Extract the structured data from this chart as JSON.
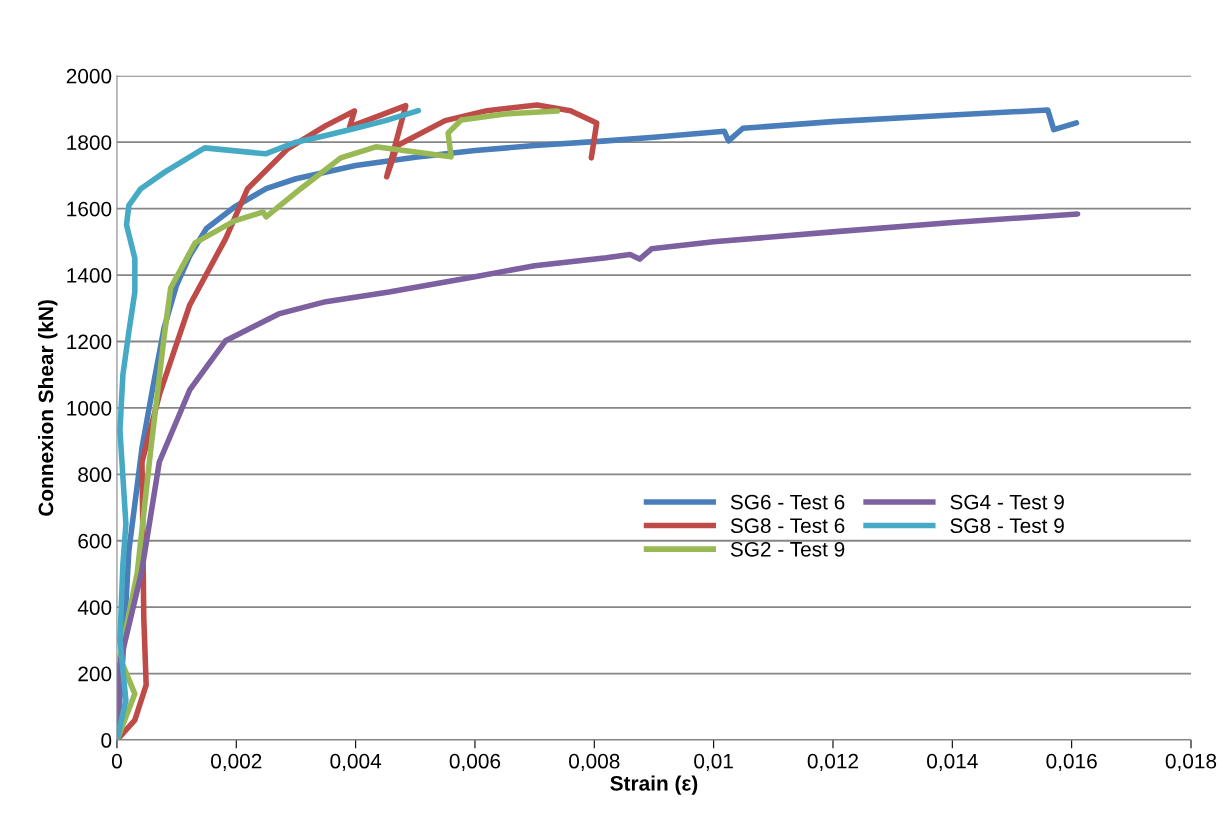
{
  "chart_data": {
    "type": "line",
    "xlabel": "Strain (ε)",
    "ylabel": "Connexion Shear (kN)",
    "xlim": [
      0,
      0.018
    ],
    "ylim": [
      0,
      2000
    ],
    "xticks": [
      0,
      {
        "value": 0.002,
        "label": "0,002"
      },
      {
        "value": 0.004,
        "label": "0,004"
      },
      {
        "value": 0.006,
        "label": "0,006"
      },
      {
        "value": 0.008,
        "label": "0,008"
      },
      {
        "value": 0.01,
        "label": "0,01"
      },
      {
        "value": 0.012,
        "label": "0,012"
      },
      {
        "value": 0.014,
        "label": "0,014"
      },
      {
        "value": 0.016,
        "label": "0,016"
      },
      {
        "value": 0.018,
        "label": "0,018"
      }
    ],
    "yticks": [
      0,
      200,
      400,
      600,
      800,
      1000,
      1200,
      1400,
      1600,
      1800,
      2000
    ],
    "grid": "y",
    "legend": "right",
    "marker": "none",
    "line_style": "solid",
    "series": [
      {
        "name": "SG6 - Test 6",
        "color": "#4a7ebb",
        "x": [
          0,
          0.0001,
          0.0002,
          0.00042,
          0.0006,
          0.00079,
          0.001,
          0.00122,
          0.0015,
          0.00197,
          0.0025,
          0.003,
          0.004,
          0.005,
          0.006,
          0.007,
          0.0082,
          0.009,
          0.01018,
          0.01025,
          0.01049,
          0.012,
          0.014,
          0.0156,
          0.0157,
          0.01608
        ],
        "values": [
          0,
          250,
          570,
          880,
          1060,
          1241,
          1370,
          1458,
          1540,
          1605,
          1660,
          1690,
          1730,
          1755,
          1775,
          1790,
          1804,
          1815,
          1833,
          1804,
          1842,
          1862,
          1882,
          1897,
          1838,
          1858
        ]
      },
      {
        "name": "SG8 - Test 6",
        "color": "#be4b48",
        "x": [
          0,
          0.0003,
          0.00049,
          0.00045,
          0.00042,
          0.00071,
          0.00122,
          0.00182,
          0.00219,
          0.00286,
          0.0035,
          0.00398,
          0.0039,
          0.0044,
          0.00484,
          0.00452,
          0.0047,
          0.0055,
          0.0062,
          0.00704,
          0.0076,
          0.00804,
          0.00795
        ],
        "values": [
          0,
          60,
          166,
          367,
          837,
          1039,
          1310,
          1509,
          1660,
          1780,
          1850,
          1894,
          1846,
          1880,
          1910,
          1696,
          1790,
          1865,
          1895,
          1912,
          1895,
          1858,
          1753
        ]
      },
      {
        "name": "SG2 - Test 9",
        "color": "#98b954",
        "x": [
          0,
          0.0003,
          5e-05,
          0.00034,
          0.00056,
          0.00079,
          0.0009,
          0.00131,
          0.00197,
          0.00245,
          0.0025,
          0.00308,
          0.00375,
          0.00434,
          0.0056,
          0.00555,
          0.00577,
          0.0065,
          0.00738
        ],
        "values": [
          0,
          139,
          247,
          503,
          864,
          1214,
          1361,
          1497,
          1563,
          1590,
          1575,
          1660,
          1753,
          1786,
          1756,
          1828,
          1867,
          1885,
          1894
        ]
      },
      {
        "name": "SG4 - Test 9",
        "color": "#7d60a0",
        "x": [
          0,
          5e-05,
          0.00041,
          0.00071,
          0.00122,
          0.00182,
          0.00271,
          0.0035,
          0.00456,
          0.006,
          0.007,
          0.0082,
          0.0086,
          0.00876,
          0.00896,
          0.01,
          0.012,
          0.014,
          0.0161
        ],
        "values": [
          0,
          232,
          503,
          837,
          1054,
          1202,
          1283,
          1320,
          1349,
          1395,
          1428,
          1452,
          1462,
          1448,
          1479,
          1500,
          1530,
          1558,
          1584
        ]
      },
      {
        "name": "SG8 - Test 9",
        "color": "#46aac5",
        "x": [
          0,
          0.00015,
          5e-05,
          0.0001,
          0.00015,
          5e-05,
          0.0001,
          0.0002,
          0.0003,
          0.0003,
          0.00016,
          0.0002,
          0.0004,
          0.0008,
          0.00147,
          0.00249,
          0.003,
          0.0035,
          0.004,
          0.0045,
          0.00505
        ],
        "values": [
          0,
          120,
          301,
          530,
          650,
          934,
          1100,
          1230,
          1349,
          1450,
          1551,
          1610,
          1660,
          1710,
          1783,
          1765,
          1800,
          1820,
          1842,
          1865,
          1895
        ]
      }
    ]
  }
}
